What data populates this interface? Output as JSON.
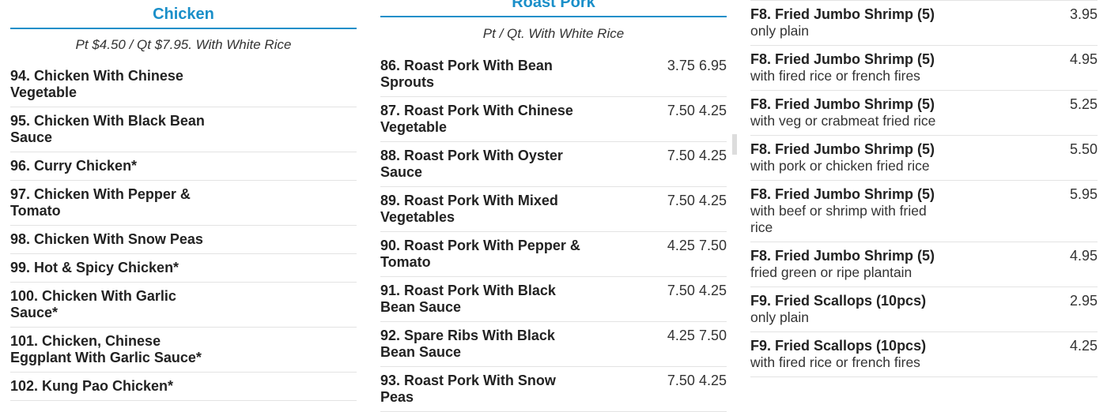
{
  "columns": [
    {
      "header": "Chicken",
      "subtitle": "Pt $4.50 / Qt $7.95. With White Rice",
      "items": [
        {
          "name": "94. Chicken With Chinese Vegetable"
        },
        {
          "name": "95. Chicken With Black Bean Sauce"
        },
        {
          "name": "96. Curry Chicken*"
        },
        {
          "name": "97. Chicken With Pepper & Tomato"
        },
        {
          "name": "98. Chicken With Snow Peas"
        },
        {
          "name": "99. Hot & Spicy Chicken*"
        },
        {
          "name": "100. Chicken With Garlic Sauce*"
        },
        {
          "name": "101. Chicken, Chinese Eggplant With Garlic Sauce*"
        },
        {
          "name": "102. Kung Pao Chicken*"
        }
      ]
    },
    {
      "header": "Roast Pork",
      "subtitle": "Pt / Qt. With White Rice",
      "items": [
        {
          "name": "86. Roast Pork With Bean Sprouts",
          "prices": [
            "3.75",
            "6.95"
          ]
        },
        {
          "name": "87. Roast Pork With Chinese Vegetable",
          "prices": [
            "7.50",
            "4.25"
          ]
        },
        {
          "name": "88. Roast Pork With Oyster Sauce",
          "prices": [
            "7.50",
            "4.25"
          ]
        },
        {
          "name": "89. Roast Pork With Mixed Vegetables",
          "prices": [
            "7.50",
            "4.25"
          ]
        },
        {
          "name": "90. Roast Pork With Pepper & Tomato",
          "prices": [
            "4.25",
            "7.50"
          ]
        },
        {
          "name": "91. Roast Pork With Black Bean Sauce",
          "prices": [
            "7.50",
            "4.25"
          ]
        },
        {
          "name": "92. Spare Ribs With Black Bean Sauce",
          "prices": [
            "4.25",
            "7.50"
          ]
        },
        {
          "name": "93. Roast Pork With Snow Peas",
          "prices": [
            "7.50",
            "4.25"
          ]
        }
      ]
    },
    {
      "items": [
        {
          "name": "F8. Fried Jumbo Shrimp (5)",
          "description": "only plain",
          "price": "3.95"
        },
        {
          "name": "F8. Fried Jumbo Shrimp (5)",
          "description": "with fired rice or french fires",
          "price": "4.95"
        },
        {
          "name": "F8. Fried Jumbo Shrimp (5)",
          "description": "with veg or crabmeat fried rice",
          "price": "5.25"
        },
        {
          "name": "F8. Fried Jumbo Shrimp (5)",
          "description": "with pork or chicken fried rice",
          "price": "5.50"
        },
        {
          "name": "F8. Fried Jumbo Shrimp (5)",
          "description": "with beef or shrimp with fried rice",
          "price": "5.95"
        },
        {
          "name": "F8. Fried Jumbo Shrimp (5)",
          "description": "fried green or ripe plantain",
          "price": "4.95"
        },
        {
          "name": "F9. Fried Scallops (10pcs)",
          "description": "only plain",
          "price": "2.95"
        },
        {
          "name": "F9. Fried Scallops (10pcs)",
          "description": "with fired rice or french fires",
          "price": "4.25"
        }
      ]
    }
  ]
}
